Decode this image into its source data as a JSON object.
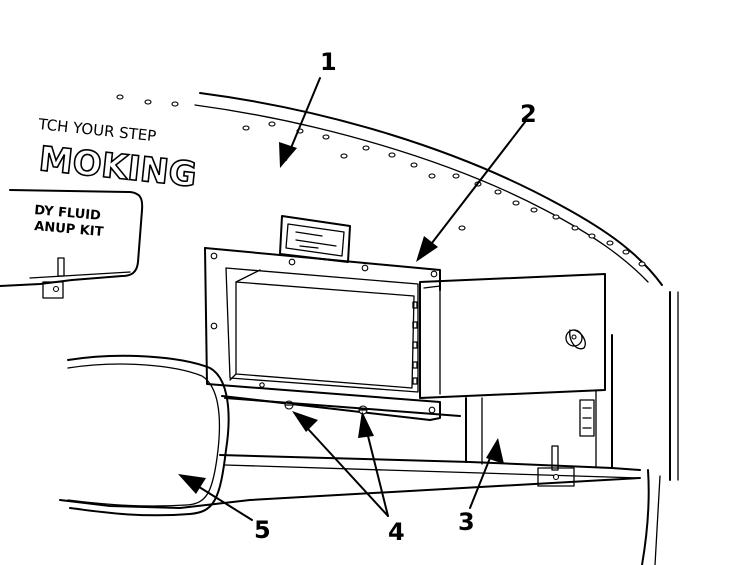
{
  "stencils": {
    "line1": "TCH YOUR STEP",
    "line2": "MOKING",
    "line3": "DY FLUID",
    "line4": "ANUP KIT"
  },
  "callouts": [
    {
      "id": "1",
      "label": "1"
    },
    {
      "id": "2",
      "label": "2"
    },
    {
      "id": "3",
      "label": "3"
    },
    {
      "id": "4",
      "label": "4"
    },
    {
      "id": "5",
      "label": "5"
    }
  ]
}
